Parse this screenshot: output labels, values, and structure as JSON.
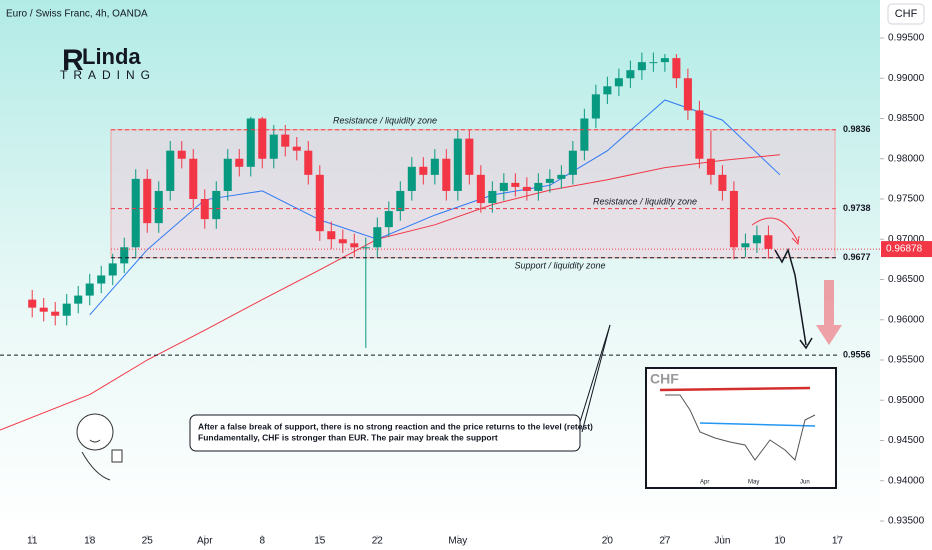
{
  "chart_data": {
    "type": "candlestick",
    "title": "Euro / Swiss Franc, 4h, OANDA",
    "currency_button": "CHF",
    "logo": [
      "Linda",
      "TRADING"
    ],
    "xlim": [
      -2.8,
      73.7
    ],
    "xticks": [
      {
        "value": 0,
        "label": "11"
      },
      {
        "value": 5,
        "label": "18"
      },
      {
        "value": 10,
        "label": "25"
      },
      {
        "value": 15,
        "label": "Apr"
      },
      {
        "value": 20,
        "label": "8"
      },
      {
        "value": 25,
        "label": "15"
      },
      {
        "value": 30,
        "label": "22"
      },
      {
        "value": 37,
        "label": "May"
      },
      {
        "value": 50,
        "label": "20"
      },
      {
        "value": 55,
        "label": "27"
      },
      {
        "value": 60,
        "label": "Jun"
      },
      {
        "value": 65,
        "label": "10"
      },
      {
        "value": 70,
        "label": "17"
      }
    ],
    "ylim": [
      0.93326,
      0.99972
    ],
    "yticks": [
      {
        "value": 0.995,
        "label": "0.99500"
      },
      {
        "value": 0.99,
        "label": "0.99000"
      },
      {
        "value": 0.985,
        "label": "0.98500"
      },
      {
        "value": 0.98,
        "label": "0.98000"
      },
      {
        "value": 0.975,
        "label": "0.97500"
      },
      {
        "value": 0.97,
        "label": "0.97000"
      },
      {
        "value": 0.965,
        "label": "0.96500"
      },
      {
        "value": 0.96,
        "label": "0.96000"
      },
      {
        "value": 0.955,
        "label": "0.95500"
      },
      {
        "value": 0.95,
        "label": "0.95000"
      },
      {
        "value": 0.945,
        "label": "0.94500"
      },
      {
        "value": 0.94,
        "label": "0.94000"
      },
      {
        "value": 0.935,
        "label": "0.93500"
      }
    ],
    "up_color": "#089981",
    "down_color": "#f23645",
    "open": [
      0.9625,
      0.9615,
      0.961,
      0.9605,
      0.962,
      0.963,
      0.9645,
      0.9655,
      0.967,
      0.969,
      0.9775,
      0.972,
      0.976,
      0.981,
      0.98,
      0.975,
      0.9725,
      0.976,
      0.98,
      0.979,
      0.985,
      0.98,
      0.983,
      0.9815,
      0.981,
      0.978,
      0.971,
      0.97,
      0.9695,
      0.969,
      0.969,
      0.9715,
      0.9735,
      0.976,
      0.979,
      0.978,
      0.98,
      0.976,
      0.9825,
      0.978,
      0.9745,
      0.976,
      0.977,
      0.9765,
      0.976,
      0.977,
      0.9775,
      0.978,
      0.981,
      0.985,
      0.988,
      0.989,
      0.99,
      0.991,
      0.992,
      0.992,
      0.9925,
      0.99,
      0.986,
      0.98,
      0.978,
      0.976,
      0.969,
      0.9695,
      0.9705
    ],
    "high": [
      0.9637,
      0.9627,
      0.9622,
      0.9632,
      0.9642,
      0.9657,
      0.9667,
      0.9682,
      0.9702,
      0.9787,
      0.9787,
      0.9772,
      0.9822,
      0.9822,
      0.9812,
      0.9762,
      0.9772,
      0.9812,
      0.9812,
      0.9852,
      0.9852,
      0.9842,
      0.9842,
      0.9827,
      0.9822,
      0.9792,
      0.9722,
      0.9712,
      0.9707,
      0.9702,
      0.9727,
      0.9747,
      0.9772,
      0.9802,
      0.9802,
      0.9812,
      0.9812,
      0.9836,
      0.9836,
      0.9792,
      0.9772,
      0.9782,
      0.9782,
      0.9777,
      0.9782,
      0.9787,
      0.9792,
      0.9822,
      0.9862,
      0.9892,
      0.9902,
      0.9912,
      0.9922,
      0.9932,
      0.9932,
      0.993,
      0.993,
      0.9912,
      0.9872,
      0.9835,
      0.9792,
      0.9772,
      0.9707,
      0.9717,
      0.9717
    ],
    "low": [
      0.9603,
      0.9598,
      0.9593,
      0.9593,
      0.9608,
      0.9618,
      0.9633,
      0.9643,
      0.9658,
      0.9678,
      0.9708,
      0.9708,
      0.9748,
      0.9788,
      0.9738,
      0.9713,
      0.9713,
      0.9748,
      0.9778,
      0.9778,
      0.9788,
      0.9788,
      0.9803,
      0.9798,
      0.9768,
      0.9698,
      0.9688,
      0.9683,
      0.9678,
      0.9565,
      0.9678,
      0.9703,
      0.9723,
      0.9748,
      0.9768,
      0.9768,
      0.9748,
      0.9748,
      0.9768,
      0.9733,
      0.9733,
      0.9748,
      0.9753,
      0.9748,
      0.9748,
      0.9758,
      0.9763,
      0.9768,
      0.9798,
      0.9838,
      0.9868,
      0.9878,
      0.9888,
      0.9898,
      0.9908,
      0.9908,
      0.9888,
      0.9848,
      0.9788,
      0.9768,
      0.9748,
      0.9675,
      0.9678,
      0.9683,
      0.9676
    ],
    "close": [
      0.9615,
      0.961,
      0.9605,
      0.962,
      0.963,
      0.9645,
      0.9655,
      0.967,
      0.969,
      0.9775,
      0.972,
      0.976,
      0.981,
      0.98,
      0.975,
      0.9725,
      0.976,
      0.98,
      0.979,
      0.985,
      0.98,
      0.983,
      0.9815,
      0.981,
      0.978,
      0.971,
      0.97,
      0.9695,
      0.969,
      0.969,
      0.9715,
      0.9735,
      0.976,
      0.979,
      0.978,
      0.98,
      0.976,
      0.9825,
      0.978,
      0.9745,
      0.976,
      0.977,
      0.9765,
      0.976,
      0.977,
      0.9775,
      0.978,
      0.981,
      0.985,
      0.988,
      0.989,
      0.99,
      0.991,
      0.992,
      0.992,
      0.9925,
      0.99,
      0.986,
      0.98,
      0.978,
      0.976,
      0.969,
      0.9695,
      0.9705,
      0.9688
    ],
    "moving_averages": [
      {
        "color": "#3179f5",
        "x": [
          5,
          10,
          15,
          20,
          25,
          30,
          35,
          40,
          45,
          50,
          55,
          60,
          65
        ],
        "values": [
          0.9606,
          0.9687,
          0.9749,
          0.976,
          0.9724,
          0.97,
          0.973,
          0.9755,
          0.9767,
          0.981,
          0.9873,
          0.9848,
          0.978
        ]
      },
      {
        "color": "#f23645",
        "x": [
          -2.8,
          5,
          10,
          15,
          20,
          25,
          30,
          35,
          40,
          45,
          50,
          55,
          60,
          65
        ],
        "values": [
          0.9463,
          0.9507,
          0.955,
          0.9587,
          0.9625,
          0.9662,
          0.97,
          0.9718,
          0.9743,
          0.9761,
          0.9774,
          0.9789,
          0.9798,
          0.9805
        ]
      }
    ],
    "current_price": 0.96878,
    "levels": [
      {
        "value": 0.9836,
        "color": "#f23645"
      },
      {
        "value": 0.9738,
        "color": "#f23645"
      },
      {
        "value": 0.9677,
        "color": "#131722"
      },
      {
        "value": 0.9556,
        "color": "#131722"
      }
    ],
    "zone_labels": [
      "Resistance / liquidity zone",
      "Resistance / liquidity zone",
      "Support / liquidity zone"
    ],
    "annotation": [
      "After a false break of support, there is no strong reaction and the price returns to the level (retest)",
      "Fundamentally, CHF is stronger than EUR. The pair may break the support"
    ],
    "inset": {
      "title": "CHF",
      "x_labels": [
        "Apr",
        "May",
        "Jun"
      ]
    }
  }
}
